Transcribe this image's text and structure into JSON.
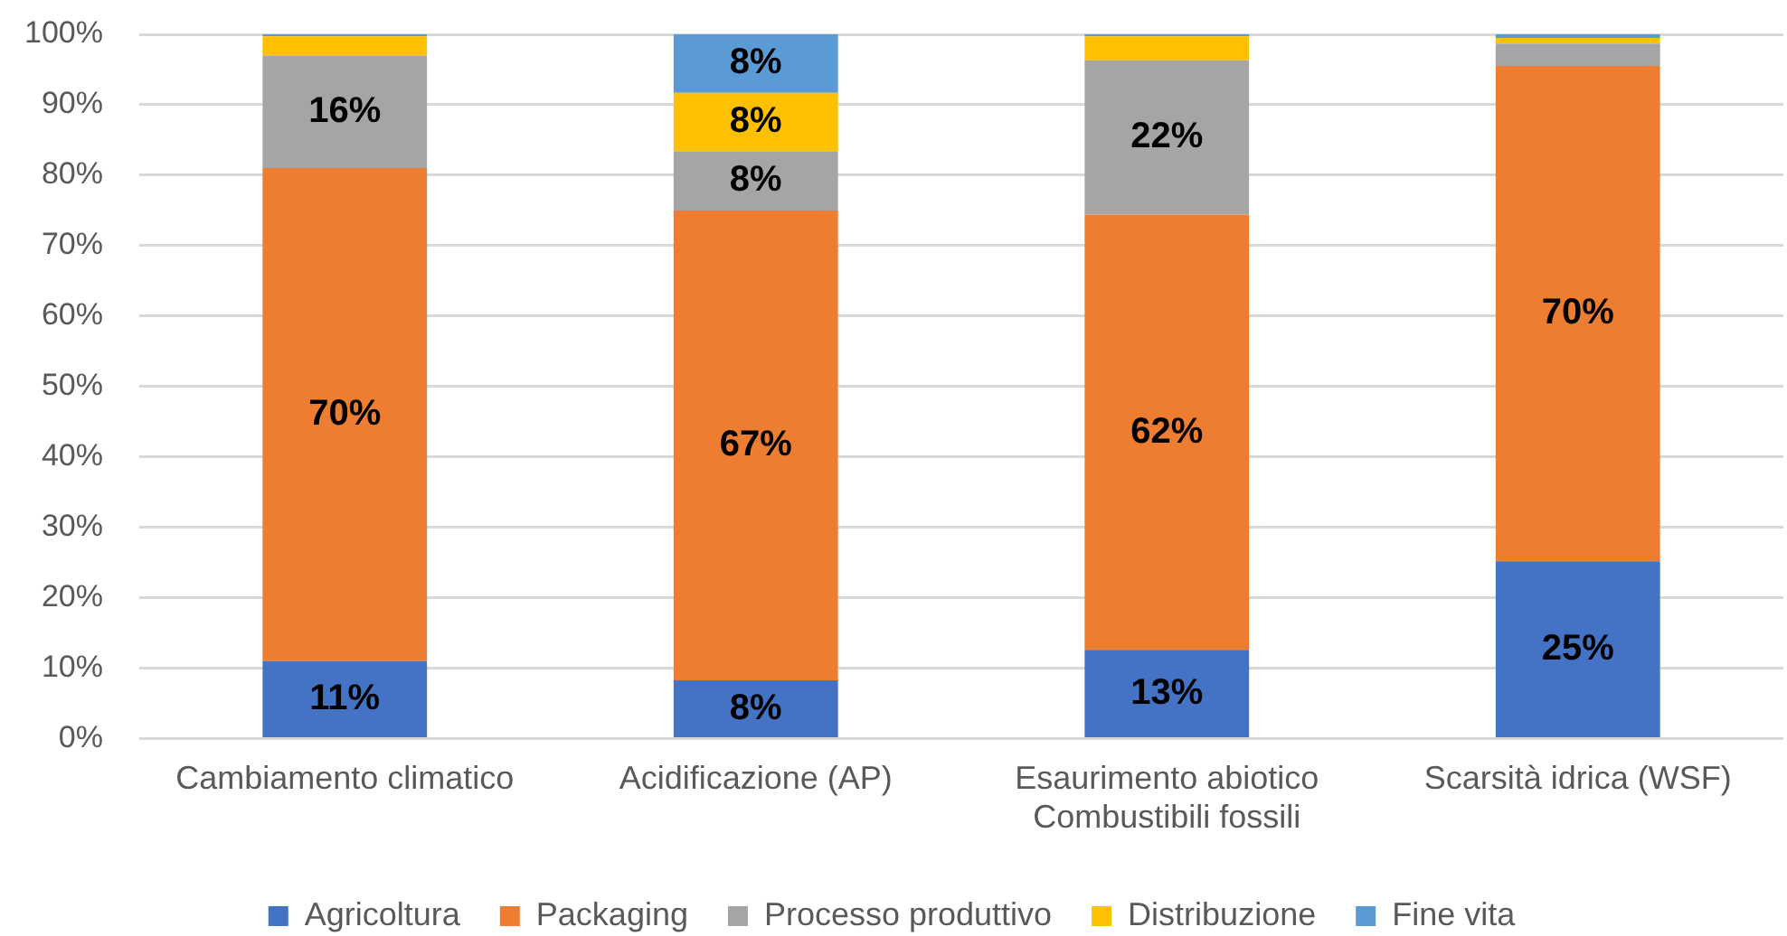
{
  "chart_data": {
    "type": "bar",
    "stacked": true,
    "categories": [
      "Cambiamento climatico",
      "Acidificazione (AP)",
      "Esaurimento abiotico\nCombustibili fossili",
      "Scarsità idrica (WSF)"
    ],
    "series": [
      {
        "name": "Agricoltura",
        "color": "#4472c4",
        "values": [
          11,
          8.3,
          12.6,
          25.2
        ],
        "value_labels": [
          "11%",
          "8%",
          "13%",
          "25%"
        ]
      },
      {
        "name": "Packaging",
        "color": "#ed7d31",
        "values": [
          70,
          66.7,
          61.8,
          70.3
        ],
        "value_labels": [
          "70%",
          "67%",
          "62%",
          "70%"
        ]
      },
      {
        "name": "Processo produttivo",
        "color": "#a5a5a5",
        "values": [
          16,
          8.4,
          21.9,
          3.2
        ],
        "value_labels": [
          "16%",
          "8%",
          "22%",
          null
        ]
      },
      {
        "name": "Distribuzione",
        "color": "#ffc000",
        "values": [
          2.7,
          8.3,
          3.4,
          0.8
        ],
        "value_labels": [
          null,
          "8%",
          null,
          null
        ]
      },
      {
        "name": "Fine vita",
        "color": "#5b9bd5",
        "values": [
          0.3,
          8.3,
          0.3,
          0.5
        ],
        "value_labels": [
          null,
          "8%",
          null,
          null
        ]
      }
    ],
    "ylim": [
      0,
      100
    ],
    "yticks": [
      {
        "value": 0,
        "label": "0%"
      },
      {
        "value": 10,
        "label": "10%"
      },
      {
        "value": 20,
        "label": "20%"
      },
      {
        "value": 30,
        "label": "30%"
      },
      {
        "value": 40,
        "label": "40%"
      },
      {
        "value": 50,
        "label": "50%"
      },
      {
        "value": 60,
        "label": "60%"
      },
      {
        "value": 70,
        "label": "70%"
      },
      {
        "value": 80,
        "label": "80%"
      },
      {
        "value": 90,
        "label": "90%"
      },
      {
        "value": 100,
        "label": "100%"
      }
    ],
    "grid": "y",
    "legend": "bottom"
  }
}
